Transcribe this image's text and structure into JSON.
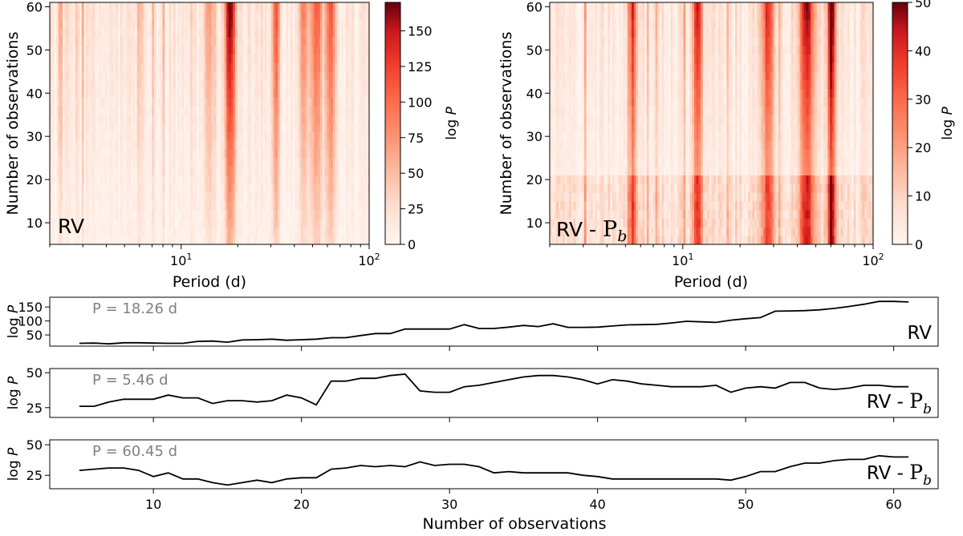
{
  "chart_data": [
    {
      "type": "heatmap",
      "panel": "top-left",
      "ylabel": "Number of observations",
      "xlabel": "Period (d)",
      "xscale": "log",
      "xlim": [
        2,
        100
      ],
      "ylim": [
        5,
        61
      ],
      "xticks": [
        {
          "base": "10",
          "exp": "1",
          "value": 10
        },
        {
          "base": "10",
          "exp": "2",
          "value": 100
        }
      ],
      "yticks": [
        "10",
        "20",
        "30",
        "40",
        "50",
        "60"
      ],
      "annotation": "RV",
      "colorbar": {
        "label": "log P",
        "ticks": [
          "0",
          "25",
          "50",
          "75",
          "100",
          "125",
          "150"
        ],
        "range": [
          0,
          170
        ]
      },
      "color_low": "#fff5f0",
      "color_high": "#67000d",
      "hotspots": [
        {
          "period": 18.26,
          "peak": 160,
          "width": 0.012
        },
        {
          "period": 32,
          "peak": 90,
          "width": 0.01
        },
        {
          "period": 52,
          "peak": 95,
          "width": 0.014
        },
        {
          "period": 62,
          "peak": 100,
          "width": 0.012
        },
        {
          "period": 45,
          "peak": 70,
          "width": 0.012
        },
        {
          "period": 14,
          "peak": 55,
          "width": 0.01
        }
      ]
    },
    {
      "type": "heatmap",
      "panel": "top-right",
      "ylabel": "Number of observations",
      "xlabel": "Period (d)",
      "xscale": "log",
      "xlim": [
        2,
        100
      ],
      "ylim": [
        5,
        61
      ],
      "xticks": [
        {
          "base": "10",
          "exp": "1",
          "value": 10
        },
        {
          "base": "10",
          "exp": "2",
          "value": 100
        }
      ],
      "yticks": [
        "10",
        "20",
        "30",
        "40",
        "50",
        "60"
      ],
      "annotation": {
        "prefix": "RV - ",
        "main": "P",
        "sub": "b"
      },
      "colorbar": {
        "label": "log P",
        "ticks": [
          "0",
          "10",
          "20",
          "30",
          "40",
          "50"
        ],
        "range": [
          0,
          50
        ]
      },
      "color_low": "#fff5f0",
      "color_high": "#67000d",
      "hotspots": [
        {
          "period": 60.45,
          "peak": 48,
          "width": 0.01
        },
        {
          "period": 5.46,
          "peak": 36,
          "width": 0.008
        },
        {
          "period": 12,
          "peak": 40,
          "width": 0.01
        },
        {
          "period": 45,
          "peak": 38,
          "width": 0.02
        },
        {
          "period": 28,
          "peak": 34,
          "width": 0.014
        }
      ]
    },
    {
      "type": "line",
      "panel": "line-1",
      "ylabel": "log P",
      "ylim": [
        10,
        185
      ],
      "yticks": [
        50,
        100,
        150
      ],
      "xlim": [
        3,
        63
      ],
      "annotation": "P = 18.26 d",
      "label": "RV",
      "x": [
        5,
        6,
        7,
        8,
        9,
        10,
        11,
        12,
        13,
        14,
        15,
        16,
        17,
        18,
        19,
        20,
        21,
        22,
        23,
        24,
        25,
        26,
        27,
        28,
        29,
        30,
        31,
        32,
        33,
        34,
        35,
        36,
        37,
        38,
        39,
        40,
        41,
        42,
        43,
        44,
        45,
        46,
        47,
        48,
        49,
        50,
        51,
        52,
        53,
        54,
        55,
        56,
        57,
        58,
        59,
        60,
        61
      ],
      "y": [
        20,
        21,
        18,
        22,
        22,
        21,
        20,
        20,
        27,
        28,
        24,
        32,
        33,
        35,
        31,
        33,
        35,
        40,
        40,
        48,
        55,
        55,
        71,
        71,
        71,
        71,
        87,
        73,
        73,
        78,
        84,
        80,
        90,
        77,
        77,
        78,
        82,
        86,
        87,
        88,
        93,
        99,
        97,
        95,
        103,
        108,
        112,
        135,
        136,
        137,
        140,
        145,
        152,
        160,
        170,
        170,
        168
      ]
    },
    {
      "type": "line",
      "panel": "line-2",
      "ylabel": "log P",
      "ylim": [
        18,
        53
      ],
      "yticks": [
        25,
        50
      ],
      "xlim": [
        3,
        63
      ],
      "annotation": "P = 5.46 d",
      "label": {
        "prefix": "RV - ",
        "main": "P",
        "sub": "b"
      },
      "x": [
        5,
        6,
        7,
        8,
        9,
        10,
        11,
        12,
        13,
        14,
        15,
        16,
        17,
        18,
        19,
        20,
        21,
        22,
        23,
        24,
        25,
        26,
        27,
        28,
        29,
        30,
        31,
        32,
        33,
        34,
        35,
        36,
        37,
        38,
        39,
        40,
        41,
        42,
        43,
        44,
        45,
        46,
        47,
        48,
        49,
        50,
        51,
        52,
        53,
        54,
        55,
        56,
        57,
        58,
        59,
        60,
        61
      ],
      "y": [
        26,
        26,
        29,
        31,
        31,
        31,
        34,
        32,
        32,
        28,
        30,
        30,
        29,
        30,
        34,
        32,
        27,
        44,
        44,
        46,
        46,
        48,
        49,
        37,
        36,
        36,
        40,
        41,
        43,
        45,
        47,
        48,
        48,
        47,
        45,
        42,
        45,
        44,
        42,
        41,
        40,
        40,
        40,
        41,
        36,
        39,
        40,
        39,
        43,
        43,
        39,
        38,
        39,
        41,
        41,
        40,
        40
      ]
    },
    {
      "type": "line",
      "panel": "line-3",
      "ylabel": "log P",
      "ylim": [
        14,
        54
      ],
      "yticks": [
        25,
        50
      ],
      "xlim": [
        3,
        63
      ],
      "xticks": [
        10,
        20,
        30,
        40,
        50,
        60
      ],
      "xlabel": "Number of observations",
      "annotation": "P = 60.45 d",
      "label": {
        "prefix": "RV - ",
        "main": "P",
        "sub": "b"
      },
      "x": [
        5,
        6,
        7,
        8,
        9,
        10,
        11,
        12,
        13,
        14,
        15,
        16,
        17,
        18,
        19,
        20,
        21,
        22,
        23,
        24,
        25,
        26,
        27,
        28,
        29,
        30,
        31,
        32,
        33,
        34,
        35,
        36,
        37,
        38,
        39,
        40,
        41,
        42,
        43,
        44,
        45,
        46,
        47,
        48,
        49,
        50,
        51,
        52,
        53,
        54,
        55,
        56,
        57,
        58,
        59,
        60,
        61
      ],
      "y": [
        29,
        30,
        31,
        31,
        29,
        24,
        27,
        22,
        22,
        19,
        17,
        19,
        21,
        19,
        22,
        23,
        23,
        30,
        31,
        33,
        32,
        33,
        32,
        36,
        33,
        34,
        34,
        32,
        27,
        28,
        27,
        27,
        27,
        27,
        25,
        24,
        22,
        22,
        22,
        22,
        22,
        22,
        22,
        22,
        21,
        24,
        28,
        28,
        32,
        35,
        35,
        37,
        38,
        38,
        41,
        40,
        40
      ]
    }
  ]
}
